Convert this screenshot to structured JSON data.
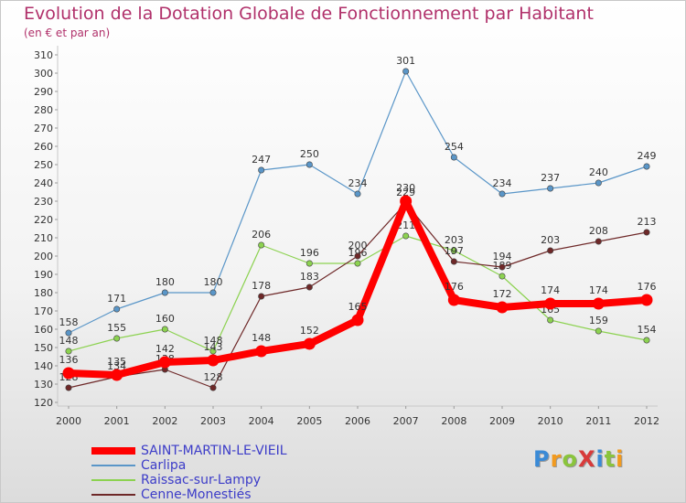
{
  "chart_data": {
    "type": "line",
    "title": "Evolution de la Dotation Globale de Fonctionnement par Habitant",
    "subtitle": "(en € et par an)",
    "xlabel": "",
    "ylabel": "",
    "ylim": [
      120,
      310
    ],
    "ytick_step": 10,
    "grid": false,
    "legend_position": "bottom-left",
    "categories": [
      "2000",
      "2001",
      "2002",
      "2003",
      "2004",
      "2005",
      "2006",
      "2007",
      "2008",
      "2009",
      "2010",
      "2011",
      "2012"
    ],
    "series": [
      {
        "name": "Carlipa",
        "color": "#5a96c8",
        "values": [
          158,
          171,
          180,
          180,
          247,
          250,
          234,
          301,
          254,
          234,
          237,
          240,
          249
        ],
        "labels": [
          "158",
          "171",
          "180",
          "180",
          "247",
          "250",
          "234",
          "301",
          "254",
          "234",
          "237",
          "240",
          "249"
        ]
      },
      {
        "name": "Raissac-sur-Lampy",
        "color": "#8cd250",
        "values": [
          148,
          155,
          160,
          148,
          206,
          196,
          196,
          211,
          203,
          189,
          165,
          159,
          154
        ],
        "labels": [
          "148",
          "155",
          "160",
          "148",
          "206",
          "196",
          "196",
          "211",
          "203",
          "189",
          "165",
          "159",
          "154"
        ]
      },
      {
        "name": "Cenne-Monestiés",
        "color": "#6e2828",
        "values": [
          128,
          134,
          138,
          128,
          178,
          183,
          200,
          229,
          197,
          194,
          203,
          208,
          213
        ],
        "labels": [
          "128",
          "134",
          "138",
          "128",
          "178",
          "183",
          "200",
          "229",
          "197",
          "194",
          "203",
          "208",
          "213"
        ]
      },
      {
        "name": "SAINT-MARTIN-LE-VIEIL",
        "color": "#ff0000",
        "values": [
          136,
          135,
          142,
          143,
          148,
          152,
          165,
          230,
          176,
          172,
          174,
          174,
          176
        ],
        "labels": [
          "136",
          "135",
          "142",
          "143",
          "148",
          "152",
          "165",
          "230",
          "176",
          "172",
          "174",
          "174",
          "176"
        ]
      }
    ]
  },
  "legend": {
    "items": [
      {
        "name": "SAINT-MARTIN-LE-VIEIL",
        "color": "#ff0000",
        "thick": true
      },
      {
        "name": "Carlipa",
        "color": "#5a96c8",
        "thick": false
      },
      {
        "name": "Raissac-sur-Lampy",
        "color": "#8cd250",
        "thick": false
      },
      {
        "name": "Cenne-Monestiés",
        "color": "#6e2828",
        "thick": false
      }
    ]
  },
  "logo": {
    "text": "ProXiti",
    "letters": [
      "P",
      "r",
      "o",
      "X",
      "i",
      "t",
      "i"
    ],
    "colors": [
      "#3a8ad6",
      "#f29a1e",
      "#8ac43c",
      "#d83a3a",
      "#3a8ad6",
      "#8ac43c",
      "#f29a1e"
    ]
  }
}
